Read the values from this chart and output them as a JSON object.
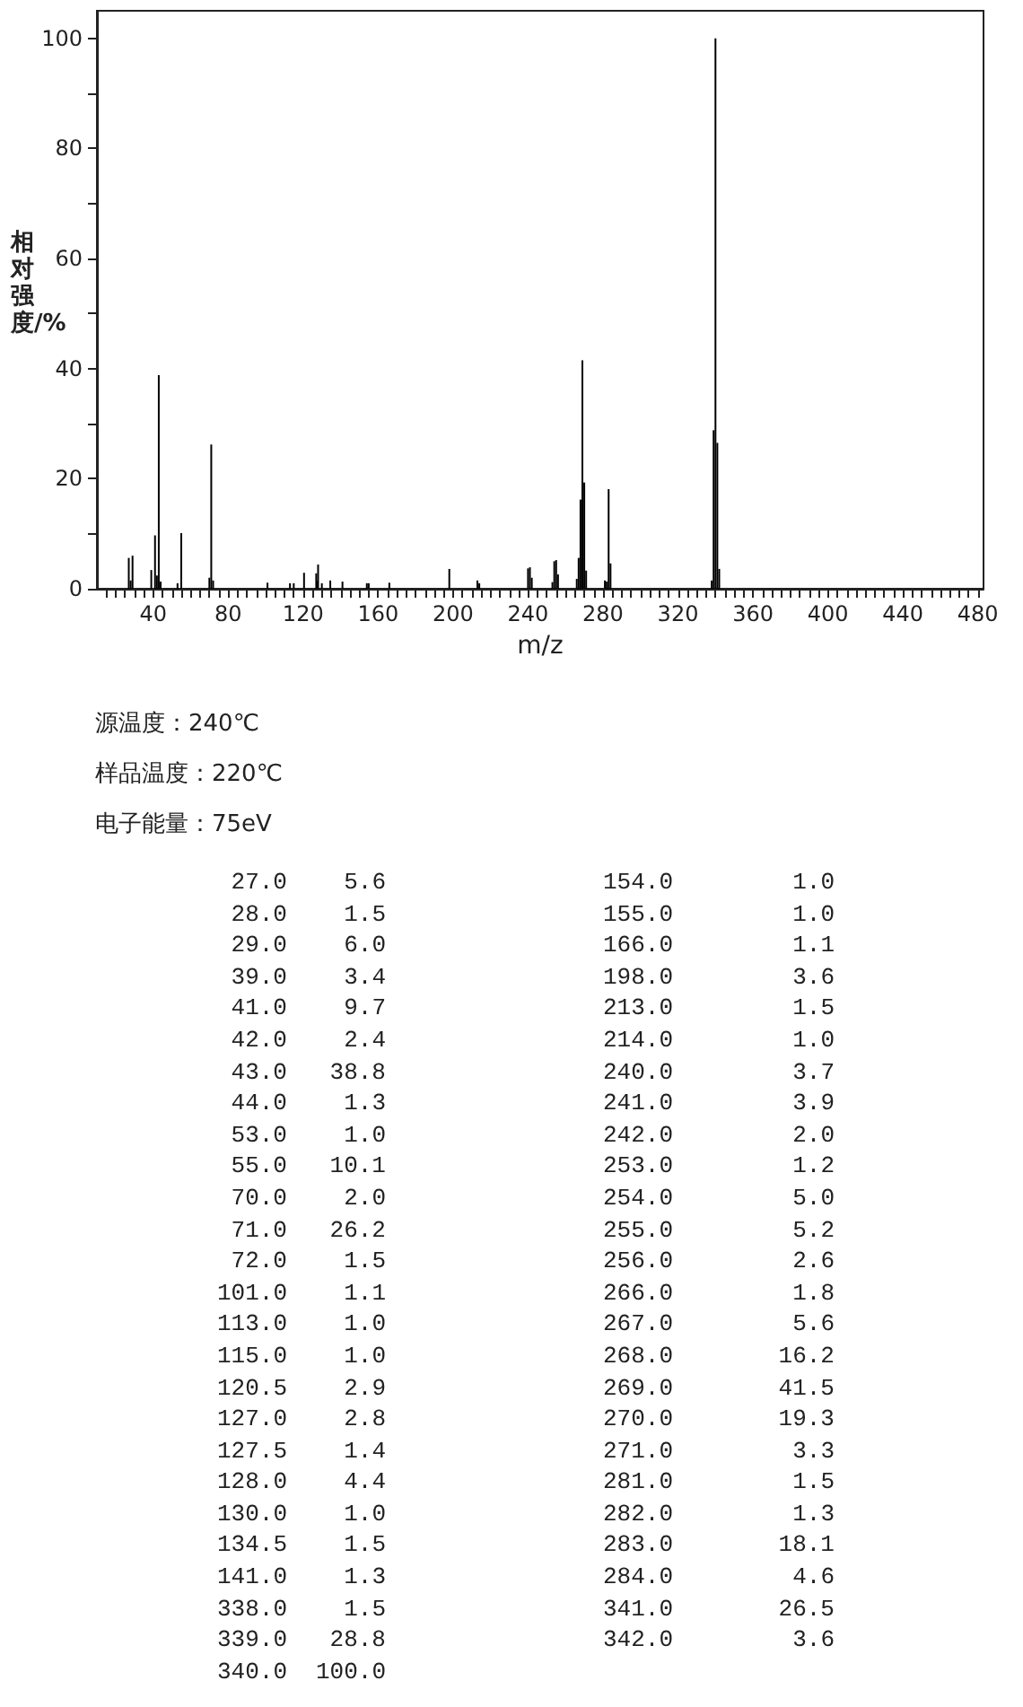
{
  "chart_data": [
    {
      "type": "bar",
      "xlabel": "m/z",
      "ylabel": "相对强度/%",
      "color": "#000000",
      "x": [
        27,
        28,
        29,
        39,
        41,
        42,
        43,
        44,
        53,
        55,
        70,
        71,
        72,
        101,
        113,
        115,
        120.5,
        127,
        127.5,
        128,
        130,
        134.5,
        141,
        154,
        155,
        166,
        198,
        213,
        214,
        240,
        241,
        242,
        253,
        254,
        255,
        256,
        266,
        267,
        268,
        269,
        270,
        271,
        281,
        282,
        283,
        284,
        338,
        339,
        340,
        341,
        342
      ],
      "values": [
        5.6,
        1.5,
        6.0,
        3.4,
        9.7,
        2.4,
        38.8,
        1.3,
        1.0,
        10.1,
        2.0,
        26.2,
        1.5,
        1.1,
        1.0,
        1.0,
        2.9,
        2.8,
        1.4,
        4.4,
        1.0,
        1.5,
        1.3,
        1.0,
        1.0,
        1.1,
        3.6,
        1.5,
        1.0,
        3.7,
        3.9,
        2.0,
        1.2,
        5.0,
        5.2,
        2.6,
        1.8,
        5.6,
        16.2,
        41.5,
        19.3,
        3.3,
        1.5,
        1.3,
        18.1,
        4.6,
        1.5,
        28.8,
        100.0,
        26.5,
        3.6
      ],
      "xlim": [
        10,
        483
      ],
      "ylim": [
        0,
        105
      ],
      "xticks": [
        {
          "value": 15,
          "label": null
        },
        {
          "value": 20,
          "label": null
        },
        {
          "value": 25,
          "label": null
        },
        {
          "value": 30,
          "label": null
        },
        {
          "value": 35,
          "label": null
        },
        40,
        {
          "value": 45,
          "label": null
        },
        {
          "value": 50,
          "label": null
        },
        {
          "value": 55,
          "label": null
        },
        {
          "value": 60,
          "label": null
        },
        {
          "value": 65,
          "label": null
        },
        {
          "value": 70,
          "label": null
        },
        {
          "value": 75,
          "label": null
        },
        80,
        {
          "value": 85,
          "label": null
        },
        {
          "value": 90,
          "label": null
        },
        {
          "value": 95,
          "label": null
        },
        {
          "value": 100,
          "label": null
        },
        {
          "value": 105,
          "label": null
        },
        {
          "value": 110,
          "label": null
        },
        {
          "value": 115,
          "label": null
        },
        120,
        {
          "value": 125,
          "label": null
        },
        {
          "value": 130,
          "label": null
        },
        {
          "value": 135,
          "label": null
        },
        {
          "value": 140,
          "label": null
        },
        {
          "value": 145,
          "label": null
        },
        {
          "value": 150,
          "label": null
        },
        {
          "value": 155,
          "label": null
        },
        160,
        {
          "value": 165,
          "label": null
        },
        {
          "value": 170,
          "label": null
        },
        {
          "value": 175,
          "label": null
        },
        {
          "value": 180,
          "label": null
        },
        {
          "value": 185,
          "label": null
        },
        {
          "value": 190,
          "label": null
        },
        {
          "value": 195,
          "label": null
        },
        200,
        {
          "value": 205,
          "label": null
        },
        {
          "value": 210,
          "label": null
        },
        {
          "value": 215,
          "label": null
        },
        {
          "value": 220,
          "label": null
        },
        {
          "value": 225,
          "label": null
        },
        {
          "value": 230,
          "label": null
        },
        {
          "value": 235,
          "label": null
        },
        240,
        {
          "value": 245,
          "label": null
        },
        {
          "value": 250,
          "label": null
        },
        {
          "value": 255,
          "label": null
        },
        {
          "value": 260,
          "label": null
        },
        {
          "value": 265,
          "label": null
        },
        {
          "value": 270,
          "label": null
        },
        {
          "value": 275,
          "label": null
        },
        280,
        {
          "value": 285,
          "label": null
        },
        {
          "value": 290,
          "label": null
        },
        {
          "value": 295,
          "label": null
        },
        {
          "value": 300,
          "label": null
        },
        {
          "value": 305,
          "label": null
        },
        {
          "value": 310,
          "label": null
        },
        {
          "value": 315,
          "label": null
        },
        320,
        {
          "value": 325,
          "label": null
        },
        {
          "value": 330,
          "label": null
        },
        {
          "value": 335,
          "label": null
        },
        {
          "value": 340,
          "label": null
        },
        {
          "value": 345,
          "label": null
        },
        {
          "value": 350,
          "label": null
        },
        {
          "value": 355,
          "label": null
        },
        360,
        {
          "value": 365,
          "label": null
        },
        {
          "value": 370,
          "label": null
        },
        {
          "value": 375,
          "label": null
        },
        {
          "value": 380,
          "label": null
        },
        {
          "value": 385,
          "label": null
        },
        {
          "value": 390,
          "label": null
        },
        {
          "value": 395,
          "label": null
        },
        400,
        {
          "value": 405,
          "label": null
        },
        {
          "value": 410,
          "label": null
        },
        {
          "value": 415,
          "label": null
        },
        {
          "value": 420,
          "label": null
        },
        {
          "value": 425,
          "label": null
        },
        {
          "value": 430,
          "label": null
        },
        {
          "value": 435,
          "label": null
        },
        440,
        {
          "value": 445,
          "label": null
        },
        {
          "value": 450,
          "label": null
        },
        {
          "value": 455,
          "label": null
        },
        {
          "value": 460,
          "label": null
        },
        {
          "value": 465,
          "label": null
        },
        {
          "value": 470,
          "label": null
        },
        {
          "value": 475,
          "label": null
        },
        480
      ],
      "yticks": [
        0,
        {
          "value": 10,
          "label": null
        },
        20,
        {
          "value": 30,
          "label": null
        },
        40,
        {
          "value": 50,
          "label": null
        },
        60,
        {
          "value": 70,
          "label": null
        },
        80,
        {
          "value": 90,
          "label": null
        },
        100
      ],
      "annotations": [
        "源温度：240℃",
        "样品温度：220℃",
        "电子能量：75eV"
      ]
    },
    {
      "type": "other",
      "annotations": [
        "27.0",
        "5.6",
        "154.0",
        "1.0",
        "28.0",
        "1.5",
        "155.0",
        "1.0",
        "29.0",
        "6.0",
        "166.0",
        "1.1",
        "39.0",
        "3.4",
        "198.0",
        "3.6",
        "41.0",
        "9.7",
        "213.0",
        "1.5",
        "42.0",
        "2.4",
        "214.0",
        "1.0",
        "43.0",
        "38.8",
        "240.0",
        "3.7",
        "44.0",
        "1.3",
        "241.0",
        "3.9",
        "53.0",
        "1.0",
        "242.0",
        "2.0",
        "55.0",
        "10.1",
        "253.0",
        "1.2",
        "70.0",
        "2.0",
        "254.0",
        "5.0",
        "71.0",
        "26.2",
        "255.0",
        "5.2",
        "72.0",
        "1.5",
        "256.0",
        "2.6",
        "101.0",
        "1.1",
        "266.0",
        "1.8",
        "113.0",
        "1.0",
        "267.0",
        "5.6",
        "115.0",
        "1.0",
        "268.0",
        "16.2",
        "120.5",
        "2.9",
        "269.0",
        "41.5",
        "127.0",
        "2.8",
        "270.0",
        "19.3",
        "127.5",
        "1.4",
        "271.0",
        "3.3",
        "128.0",
        "4.4",
        "281.0",
        "1.5",
        "130.0",
        "1.0",
        "282.0",
        "1.3",
        "134.5",
        "1.5",
        "283.0",
        "18.1",
        "141.0",
        "1.3",
        "284.0",
        "4.6",
        "338.0",
        "1.5",
        "341.0",
        "26.5",
        "339.0",
        "28.8",
        "342.0",
        "3.6",
        "340.0",
        "100.0"
      ]
    }
  ]
}
